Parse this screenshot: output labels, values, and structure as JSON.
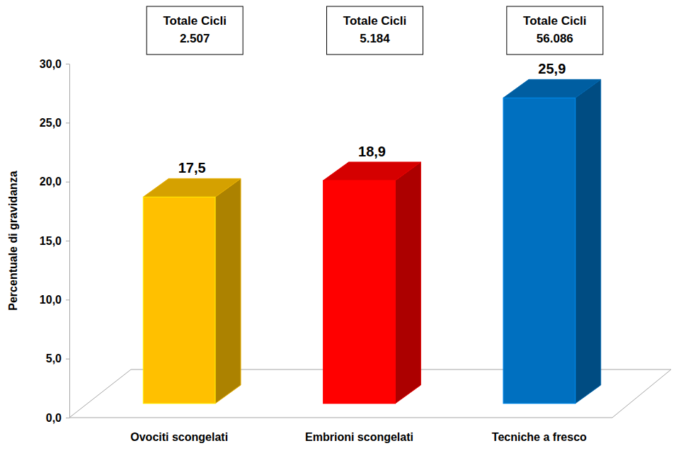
{
  "chart_data": {
    "type": "bar",
    "y_label": "Percentuale di gravidanza",
    "categories": [
      "Ovociti scongelati",
      "Embrioni scongelati",
      "Tecniche a fresco"
    ],
    "values": [
      17.5,
      18.9,
      25.9
    ],
    "value_labels": [
      "17,5",
      "18,9",
      "25,9"
    ],
    "colors": [
      "#ffc000",
      "#ff0000",
      "#0070c0"
    ],
    "ylim": [
      0,
      30
    ],
    "yticks": [
      {
        "value": 0,
        "label": "0,0"
      },
      {
        "value": 5,
        "label": "5,0"
      },
      {
        "value": 10,
        "label": "10,0"
      },
      {
        "value": 15,
        "label": "15,0"
      },
      {
        "value": 20,
        "label": "20,0"
      },
      {
        "value": 25,
        "label": "25,0"
      },
      {
        "value": 30,
        "label": "30,0"
      }
    ],
    "data_labels": true,
    "grid": false,
    "totals": {
      "label": "Totale Cicli",
      "values": [
        2507,
        5184,
        56086
      ],
      "value_labels": [
        "2.507",
        "5.184",
        "56.086"
      ]
    }
  }
}
